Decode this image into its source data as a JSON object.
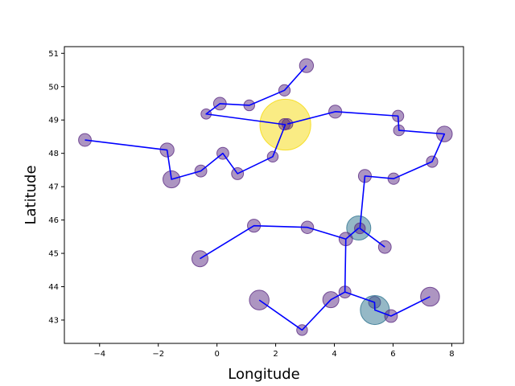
{
  "chart_data": {
    "type": "scatter",
    "xlabel": "Longitude",
    "ylabel": "Latitude",
    "xlim": [
      -5.2,
      8.4
    ],
    "ylim": [
      42.3,
      51.2
    ],
    "xticks": [
      -4,
      -2,
      0,
      2,
      4,
      6,
      8
    ],
    "yticks": [
      43,
      44,
      45,
      46,
      47,
      48,
      49,
      50,
      51
    ],
    "grid": false,
    "colors": {
      "line": "#0000ff",
      "marker": "#5b2c83",
      "highlight_large": "#f5d90a",
      "highlight_medium": "#2c728e"
    },
    "points": [
      {
        "x": -4.5,
        "y": 48.4,
        "size": 250
      },
      {
        "x": -1.7,
        "y": 48.1,
        "size": 300
      },
      {
        "x": -1.55,
        "y": 47.22,
        "size": 450
      },
      {
        "x": -0.55,
        "y": 47.47,
        "size": 220
      },
      {
        "x": 0.2,
        "y": 48.0,
        "size": 220
      },
      {
        "x": 0.7,
        "y": 47.39,
        "size": 220
      },
      {
        "x": 1.9,
        "y": 47.9,
        "size": 180
      },
      {
        "x": 2.33,
        "y": 48.86,
        "size": 4000,
        "highlight": "large"
      },
      {
        "x": 2.3,
        "y": 48.87,
        "size": 200
      },
      {
        "x": 2.4,
        "y": 48.88,
        "size": 180
      },
      {
        "x": 4.03,
        "y": 49.25,
        "size": 260
      },
      {
        "x": 6.17,
        "y": 49.12,
        "size": 200
      },
      {
        "x": 6.2,
        "y": 48.69,
        "size": 180
      },
      {
        "x": 7.75,
        "y": 48.58,
        "size": 380
      },
      {
        "x": 7.33,
        "y": 47.75,
        "size": 200
      },
      {
        "x": 6.02,
        "y": 47.24,
        "size": 200
      },
      {
        "x": 5.04,
        "y": 47.32,
        "size": 260
      },
      {
        "x": 4.83,
        "y": 45.76,
        "size": 900,
        "highlight": "medium"
      },
      {
        "x": 4.87,
        "y": 45.75,
        "size": 180
      },
      {
        "x": 5.72,
        "y": 45.19,
        "size": 250
      },
      {
        "x": 4.39,
        "y": 45.43,
        "size": 280
      },
      {
        "x": 3.08,
        "y": 45.78,
        "size": 240
      },
      {
        "x": 1.26,
        "y": 45.83,
        "size": 260
      },
      {
        "x": -0.58,
        "y": 44.84,
        "size": 400
      },
      {
        "x": 1.44,
        "y": 43.6,
        "size": 600
      },
      {
        "x": 2.9,
        "y": 42.7,
        "size": 180
      },
      {
        "x": 3.88,
        "y": 43.61,
        "size": 400
      },
      {
        "x": 4.36,
        "y": 43.84,
        "size": 220
      },
      {
        "x": 5.37,
        "y": 43.53,
        "size": 220
      },
      {
        "x": 5.38,
        "y": 43.3,
        "size": 1300,
        "highlight": "medium"
      },
      {
        "x": 5.93,
        "y": 43.12,
        "size": 250
      },
      {
        "x": 7.26,
        "y": 43.7,
        "size": 550
      }
    ],
    "path_segments": [
      [
        [
          -4.5,
          48.4
        ],
        [
          -1.7,
          48.1
        ],
        [
          -1.55,
          47.22
        ],
        [
          -0.55,
          47.47
        ],
        [
          0.2,
          48.0
        ],
        [
          0.7,
          47.39
        ],
        [
          1.9,
          47.9
        ],
        [
          2.33,
          48.86
        ],
        [
          -0.37,
          49.18
        ],
        [
          0.1,
          49.49
        ],
        [
          1.1,
          49.44
        ],
        [
          2.3,
          49.89
        ],
        [
          3.05,
          50.63
        ]
      ],
      [
        [
          2.4,
          48.88
        ],
        [
          4.03,
          49.25
        ],
        [
          6.17,
          49.12
        ],
        [
          6.2,
          48.69
        ],
        [
          7.75,
          48.58
        ],
        [
          7.33,
          47.75
        ],
        [
          6.02,
          47.24
        ],
        [
          5.04,
          47.32
        ],
        [
          4.87,
          45.75
        ],
        [
          5.72,
          45.19
        ]
      ],
      [
        [
          4.83,
          45.76
        ],
        [
          4.39,
          45.43
        ],
        [
          3.08,
          45.78
        ],
        [
          1.26,
          45.83
        ],
        [
          -0.58,
          44.84
        ]
      ],
      [
        [
          4.39,
          45.43
        ],
        [
          4.36,
          43.84
        ],
        [
          5.37,
          43.53
        ],
        [
          5.38,
          43.3
        ],
        [
          5.93,
          43.12
        ],
        [
          7.26,
          43.7
        ]
      ],
      [
        [
          1.44,
          43.6
        ],
        [
          2.9,
          42.7
        ],
        [
          3.88,
          43.61
        ],
        [
          4.36,
          43.84
        ]
      ]
    ],
    "extra_points": [
      {
        "x": -0.37,
        "y": 49.18,
        "size": 160
      },
      {
        "x": 0.1,
        "y": 49.49,
        "size": 250
      },
      {
        "x": 1.1,
        "y": 49.44,
        "size": 180
      },
      {
        "x": 2.3,
        "y": 49.89,
        "size": 200
      },
      {
        "x": 3.05,
        "y": 50.63,
        "size": 300
      }
    ]
  }
}
